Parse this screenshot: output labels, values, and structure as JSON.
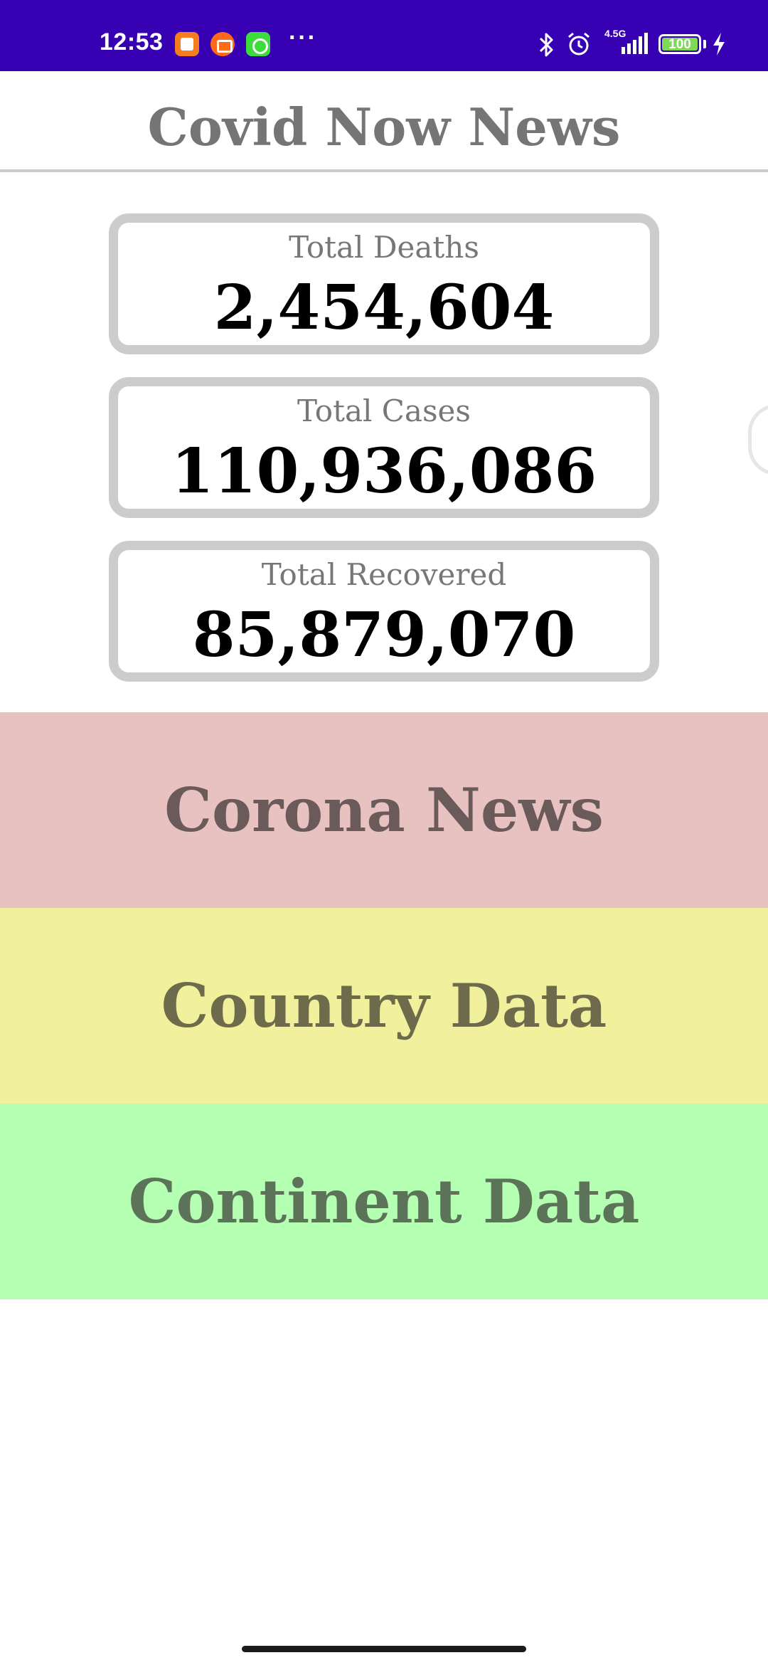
{
  "status_bar": {
    "time": "12:53",
    "more": "···",
    "network": "4.5G",
    "battery": "100",
    "background": "#3700b3"
  },
  "header": {
    "title": "Covid Now News"
  },
  "stats": {
    "deaths": {
      "label": "Total Deaths",
      "value": "2,454,604"
    },
    "cases": {
      "label": "Total Cases",
      "value": "110,936,086"
    },
    "recovered": {
      "label": "Total Recovered",
      "value": "85,879,070"
    }
  },
  "menu": {
    "corona_news": {
      "label": "Corona News",
      "color": "#e8c1c1"
    },
    "country_data": {
      "label": "Country Data",
      "color": "#f0f09d"
    },
    "continent_data": {
      "label": "Continent Data",
      "color": "#b4ffb2"
    }
  }
}
